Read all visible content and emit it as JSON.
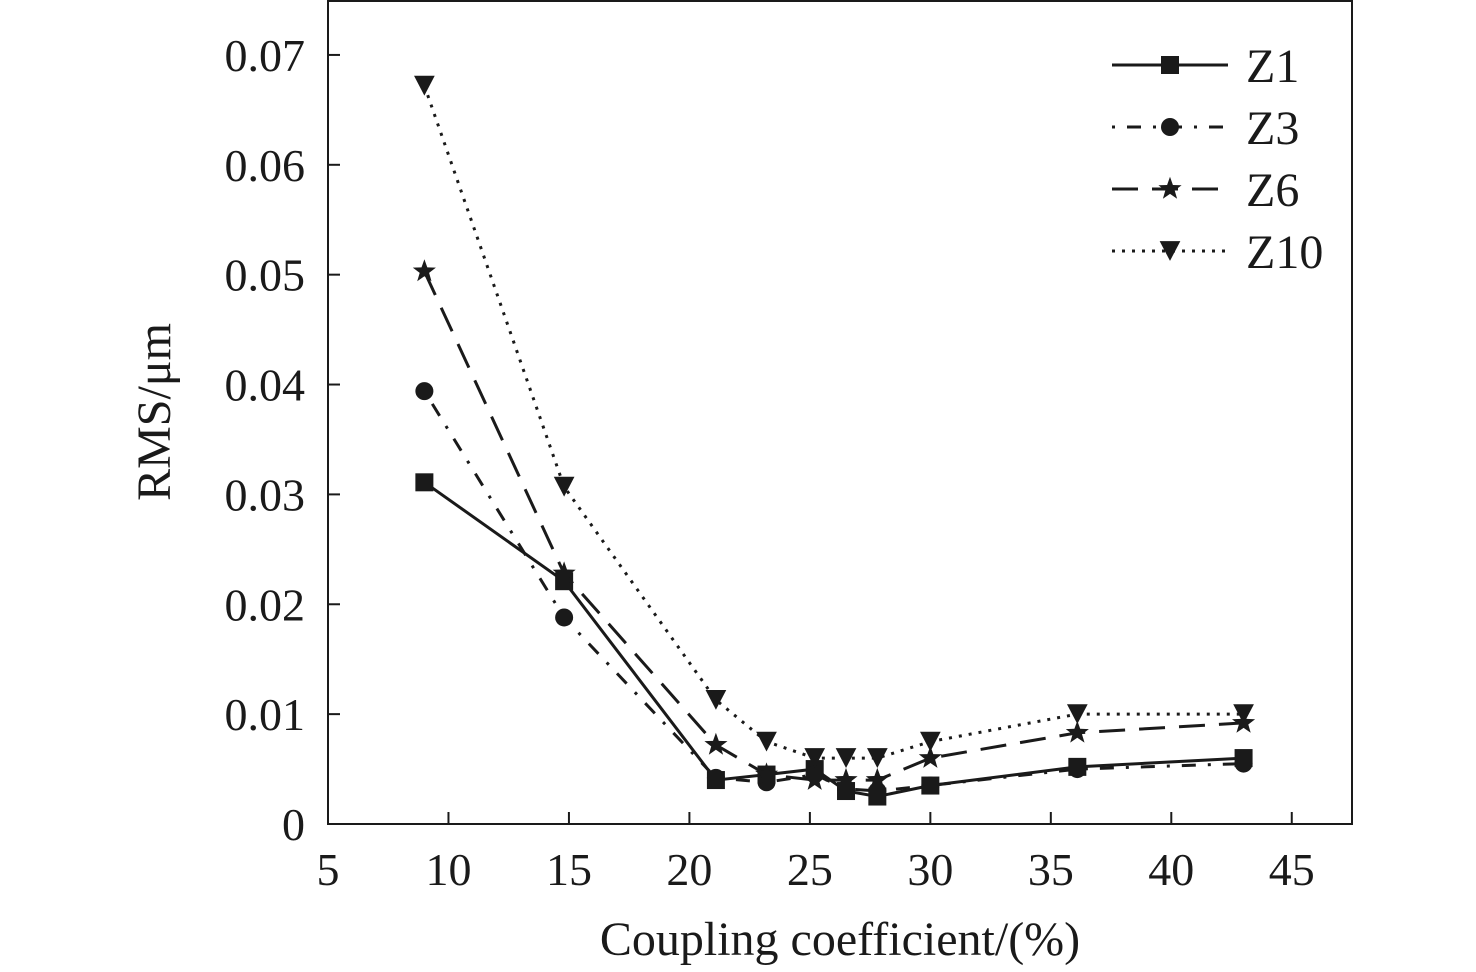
{
  "chart_data": {
    "type": "line",
    "xlabel": "Coupling coefficient/(%)",
    "ylabel": "RMS/μm",
    "xlim": [
      5,
      47.5
    ],
    "ylim": [
      0,
      0.075
    ],
    "x_ticks": [
      "5",
      "10",
      "15",
      "20",
      "25",
      "30",
      "35",
      "40",
      "45"
    ],
    "y_ticks": [
      "0",
      "0.01",
      "0.02",
      "0.03",
      "0.04",
      "0.05",
      "0.06",
      "0.07"
    ],
    "grid": false,
    "legend_position": "top-right",
    "x": [
      9,
      14.8,
      21.1,
      23.2,
      25.2,
      26.5,
      27.8,
      30,
      36.1,
      43
    ],
    "series": [
      {
        "name": "Z1",
        "marker": "square",
        "line_style": "solid",
        "values": [
          0.0311,
          0.0221,
          0.004,
          0.0045,
          0.005,
          0.003,
          0.0025,
          0.0035,
          0.0052,
          0.006
        ]
      },
      {
        "name": "Z3",
        "marker": "circle",
        "line_style": "dash-dot",
        "values": [
          0.0394,
          0.0188,
          0.0042,
          0.0038,
          0.0045,
          0.0032,
          0.003,
          0.0035,
          0.005,
          0.0055
        ]
      },
      {
        "name": "Z6",
        "marker": "star",
        "line_style": "dashed",
        "values": [
          0.0503,
          0.0228,
          0.0072,
          0.0045,
          0.004,
          0.004,
          0.004,
          0.006,
          0.0083,
          0.0092
        ]
      },
      {
        "name": "Z10",
        "marker": "triangle-down",
        "line_style": "dotted",
        "values": [
          0.0672,
          0.0307,
          0.0113,
          0.0075,
          0.006,
          0.006,
          0.006,
          0.0075,
          0.01,
          0.01
        ]
      }
    ],
    "colors": {
      "line": "#1a1a1a",
      "background": "#ffffff"
    }
  }
}
